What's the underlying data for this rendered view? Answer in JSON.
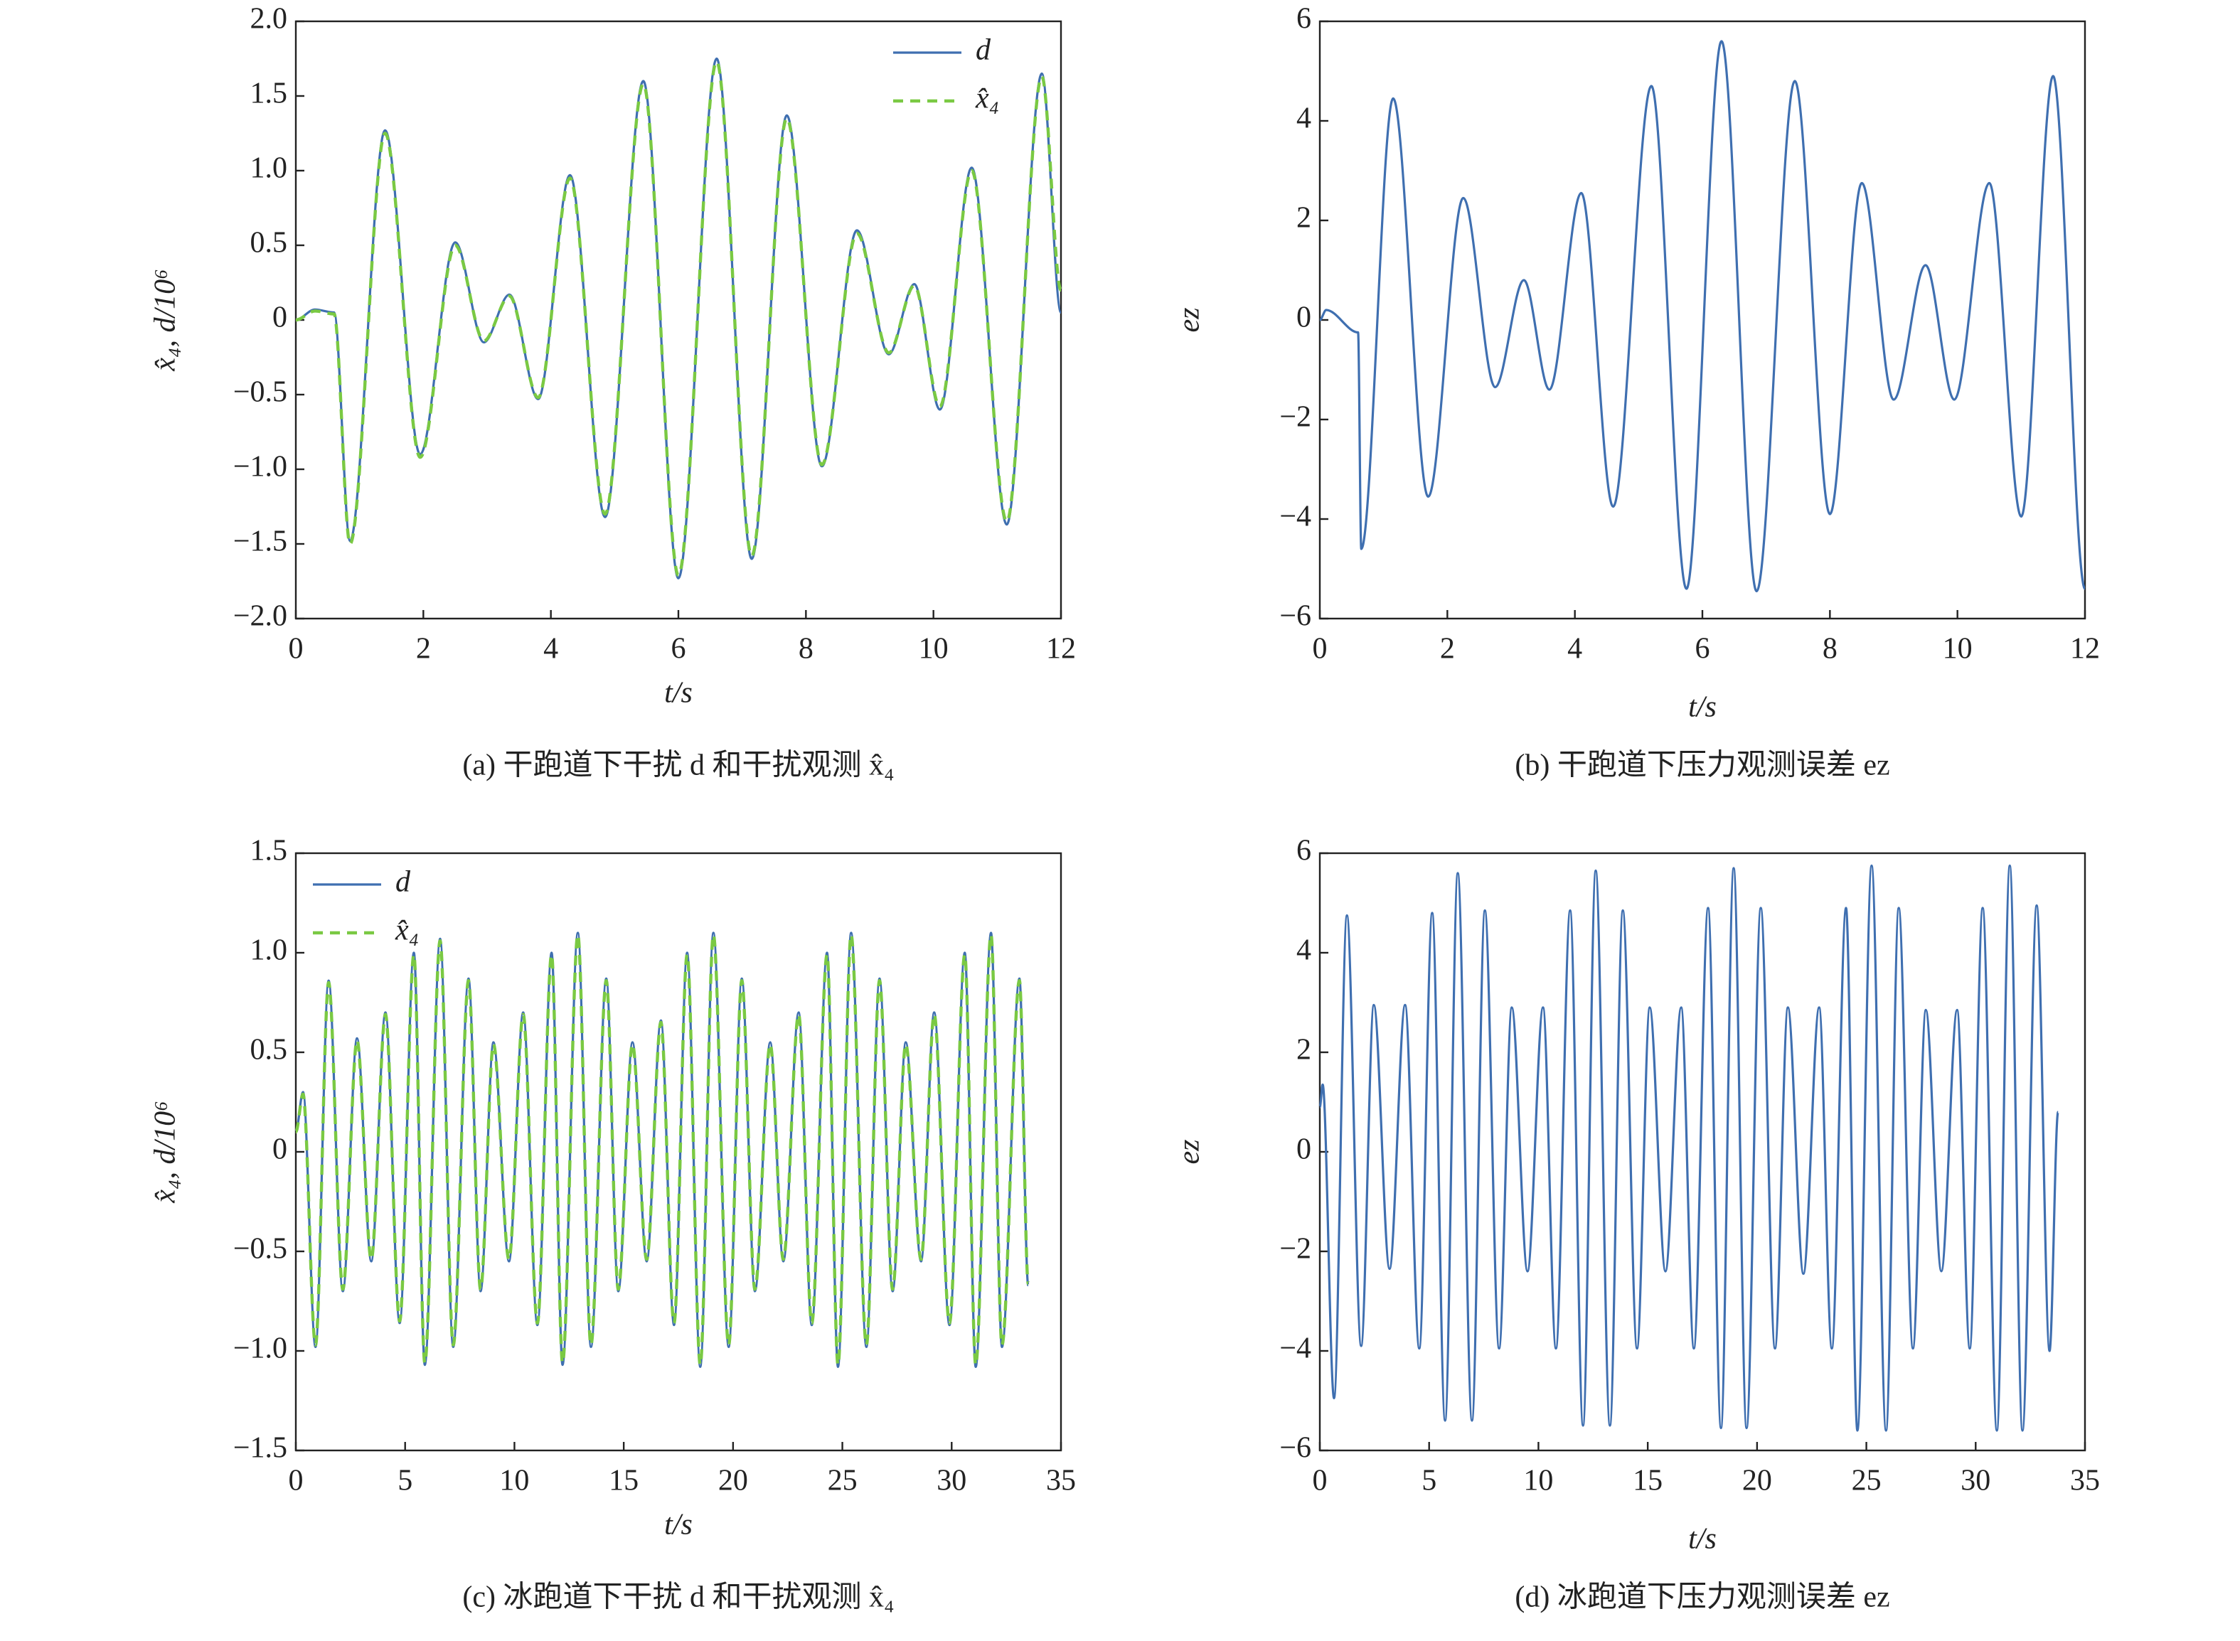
{
  "chart_data": [
    {
      "type": "line",
      "caption": "(a) 干跑道下干扰 d 和干扰观测 x̂₄",
      "xlabel": "t/s",
      "ylabel": "x̂₄, d/10⁶",
      "legend": "upper right",
      "xlim": [
        0,
        12
      ],
      "ylim": [
        -2,
        2
      ],
      "xticks": [
        0,
        2,
        4,
        6,
        8,
        10,
        12
      ],
      "yticks": [
        {
          "value": 2,
          "label": "2.0"
        },
        1.5,
        {
          "value": 1,
          "label": "1.0"
        },
        0.5,
        0,
        {
          "value": -0.5,
          "label": "−0.5"
        },
        {
          "value": -1,
          "label": "−1.0"
        },
        {
          "value": -1.5,
          "label": "−1.5"
        },
        {
          "value": -2,
          "label": "−2.0"
        }
      ],
      "x": [
        0,
        0.3,
        0.6,
        0.85,
        1.4,
        1.95,
        2.5,
        2.95,
        3.35,
        3.8,
        4.3,
        4.85,
        5.45,
        6.0,
        6.6,
        7.15,
        7.7,
        8.25,
        8.8,
        9.3,
        9.7,
        10.1,
        10.6,
        11.15,
        11.7,
        12.0
      ],
      "series": [
        {
          "name": "d",
          "color": "#3f6fb0",
          "linestyle": "solid",
          "values": [
            0,
            0.07,
            0.05,
            -1.48,
            1.27,
            -0.9,
            0.52,
            -0.15,
            0.17,
            -0.53,
            0.97,
            -1.32,
            1.6,
            -1.73,
            1.75,
            -1.6,
            1.37,
            -0.98,
            0.6,
            -0.23,
            0.24,
            -0.6,
            1.02,
            -1.37,
            1.65,
            0.05
          ]
        },
        {
          "name": "x̂₄",
          "color": "#7ac943",
          "linestyle": "dashed",
          "values": [
            0,
            0.06,
            0.04,
            -1.5,
            1.25,
            -0.92,
            0.5,
            -0.14,
            0.16,
            -0.52,
            0.95,
            -1.3,
            1.58,
            -1.71,
            1.73,
            -1.58,
            1.35,
            -0.97,
            0.58,
            -0.22,
            0.23,
            -0.58,
            1.0,
            -1.35,
            1.63,
            0.2
          ]
        }
      ]
    },
    {
      "type": "line",
      "caption": "(b) 干跑道下压力观测误差 ez",
      "xlabel": "t/s",
      "ylabel": "ez",
      "legend": "none",
      "xlim": [
        0,
        12
      ],
      "ylim": [
        -6,
        6
      ],
      "xticks": [
        0,
        2,
        4,
        6,
        8,
        10,
        12
      ],
      "yticks": [
        6,
        4,
        2,
        0,
        {
          "value": -2,
          "label": "−2"
        },
        {
          "value": -4,
          "label": "−4"
        },
        {
          "value": -6,
          "label": "−6"
        }
      ],
      "x": [
        0,
        0.1,
        0.6,
        0.65,
        1.15,
        1.7,
        2.25,
        2.75,
        3.2,
        3.6,
        4.1,
        4.6,
        5.2,
        5.75,
        6.3,
        6.85,
        7.45,
        8.0,
        8.5,
        9.0,
        9.5,
        9.95,
        10.5,
        11.0,
        11.5,
        12.0
      ],
      "series": [
        {
          "name": "ez",
          "color": "#3f6fb0",
          "linestyle": "solid",
          "values": [
            0,
            0.2,
            -0.25,
            -4.6,
            4.45,
            -3.55,
            2.45,
            -1.35,
            0.8,
            -1.4,
            2.55,
            -3.75,
            4.7,
            -5.4,
            5.6,
            -5.45,
            4.8,
            -3.9,
            2.75,
            -1.6,
            1.1,
            -1.6,
            2.75,
            -3.95,
            4.9,
            -5.4
          ]
        }
      ]
    },
    {
      "type": "line",
      "caption": "(c) 冰跑道下干扰 d 和干扰观测 x̂₄",
      "xlabel": "t/s",
      "ylabel": "x̂₄, d/10⁶",
      "legend": "upper left",
      "xlim": [
        0,
        35
      ],
      "ylim": [
        -1.5,
        1.5
      ],
      "xticks": [
        0,
        5,
        10,
        15,
        20,
        25,
        30,
        35
      ],
      "yticks": [
        1.5,
        {
          "value": 1,
          "label": "1.0"
        },
        0.5,
        0,
        {
          "value": -0.5,
          "label": "−0.5"
        },
        {
          "value": -1,
          "label": "−1.0"
        },
        {
          "value": -1.5,
          "label": "−1.5"
        }
      ],
      "x": [
        0,
        0.33,
        0.9,
        1.5,
        2.15,
        2.8,
        3.45,
        4.1,
        4.75,
        5.4,
        5.9,
        6.6,
        7.2,
        7.9,
        8.45,
        9.04,
        9.75,
        10.4,
        11.05,
        11.7,
        12.2,
        12.9,
        13.5,
        14.2,
        14.75,
        15.4,
        16.05,
        16.7,
        17.3,
        17.9,
        18.5,
        19.1,
        19.8,
        20.4,
        21.0,
        21.7,
        22.3,
        23.0,
        23.6,
        24.3,
        24.8,
        25.4,
        26.1,
        26.7,
        27.3,
        27.9,
        28.6,
        29.2,
        29.9,
        30.6,
        31.1,
        31.8,
        32.3,
        33.1,
        33.5
      ],
      "series": [
        {
          "name": "d",
          "color": "#3f6fb0",
          "linestyle": "solid",
          "values": [
            0.1,
            0.3,
            -0.98,
            0.86,
            -0.7,
            0.57,
            -0.55,
            0.7,
            -0.86,
            1.0,
            -1.07,
            1.07,
            -0.98,
            0.87,
            -0.7,
            0.55,
            -0.55,
            0.7,
            -0.87,
            1.0,
            -1.07,
            1.1,
            -0.98,
            0.87,
            -0.7,
            0.55,
            -0.55,
            0.66,
            -0.87,
            1.0,
            -1.08,
            1.1,
            -0.98,
            0.87,
            -0.7,
            0.55,
            -0.55,
            0.7,
            -0.87,
            1.0,
            -1.08,
            1.1,
            -0.98,
            0.87,
            -0.7,
            0.55,
            -0.55,
            0.7,
            -0.87,
            1.0,
            -1.08,
            1.1,
            -0.98,
            0.87,
            -0.67
          ]
        },
        {
          "name": "x̂₄",
          "color": "#7ac943",
          "linestyle": "dashed",
          "values": [
            0.1,
            0.29,
            -0.97,
            0.85,
            -0.69,
            0.56,
            -0.54,
            0.69,
            -0.85,
            0.99,
            -1.06,
            1.06,
            -0.97,
            0.86,
            -0.69,
            0.54,
            -0.54,
            0.69,
            -0.86,
            0.99,
            -1.06,
            1.09,
            -0.97,
            0.86,
            -0.69,
            0.54,
            -0.54,
            0.65,
            -0.86,
            0.99,
            -1.07,
            1.09,
            -0.97,
            0.86,
            -0.69,
            0.54,
            -0.54,
            0.69,
            -0.86,
            0.99,
            -1.07,
            1.09,
            -0.97,
            0.86,
            -0.69,
            0.54,
            -0.54,
            0.69,
            -0.86,
            0.99,
            -1.07,
            1.09,
            -0.97,
            0.86,
            -0.66
          ]
        }
      ]
    },
    {
      "type": "line",
      "caption": "(d) 冰跑道下压力观测误差 ez",
      "xlabel": "t/s",
      "ylabel": "ez",
      "legend": "none",
      "xlim": [
        0,
        35
      ],
      "ylim": [
        -6,
        6
      ],
      "xticks": [
        0,
        5,
        10,
        15,
        20,
        25,
        30,
        35
      ],
      "yticks": [
        6,
        4,
        2,
        0,
        {
          "value": -2,
          "label": "−2"
        },
        {
          "value": -4,
          "label": "−4"
        },
        {
          "value": -6,
          "label": "−6"
        }
      ],
      "x": [
        0,
        0.13,
        0.65,
        1.24,
        1.89,
        2.47,
        3.19,
        3.9,
        4.55,
        5.14,
        5.73,
        6.31,
        6.96,
        7.55,
        8.2,
        8.78,
        9.5,
        10.21,
        10.8,
        11.45,
        12.04,
        12.62,
        13.27,
        13.86,
        14.51,
        15.09,
        15.81,
        16.53,
        17.11,
        17.76,
        18.35,
        18.93,
        19.52,
        20.17,
        20.82,
        21.41,
        22.12,
        22.84,
        23.42,
        24.07,
        24.59,
        25.24,
        25.9,
        26.48,
        27.13,
        27.72,
        28.43,
        29.15,
        29.73,
        30.32,
        30.97,
        31.56,
        32.14,
        32.79,
        33.38,
        33.77
      ],
      "series": [
        {
          "name": "ez",
          "color": "#3f6fb0",
          "linestyle": "solid",
          "values": [
            0.9,
            1.35,
            -4.95,
            4.75,
            -3.9,
            2.95,
            -2.35,
            2.95,
            -3.95,
            4.8,
            -5.4,
            5.6,
            -5.4,
            4.85,
            -3.95,
            2.9,
            -2.4,
            2.9,
            -3.95,
            4.85,
            -5.5,
            5.65,
            -5.5,
            4.85,
            -3.95,
            2.9,
            -2.4,
            2.9,
            -3.95,
            4.9,
            -5.55,
            5.7,
            -5.55,
            4.9,
            -3.95,
            2.9,
            -2.45,
            2.9,
            -3.95,
            4.9,
            -5.6,
            5.75,
            -5.6,
            4.9,
            -3.95,
            2.85,
            -2.4,
            2.85,
            -3.95,
            4.9,
            -5.6,
            5.75,
            -5.6,
            4.95,
            -4.0,
            0.8
          ]
        }
      ]
    }
  ]
}
